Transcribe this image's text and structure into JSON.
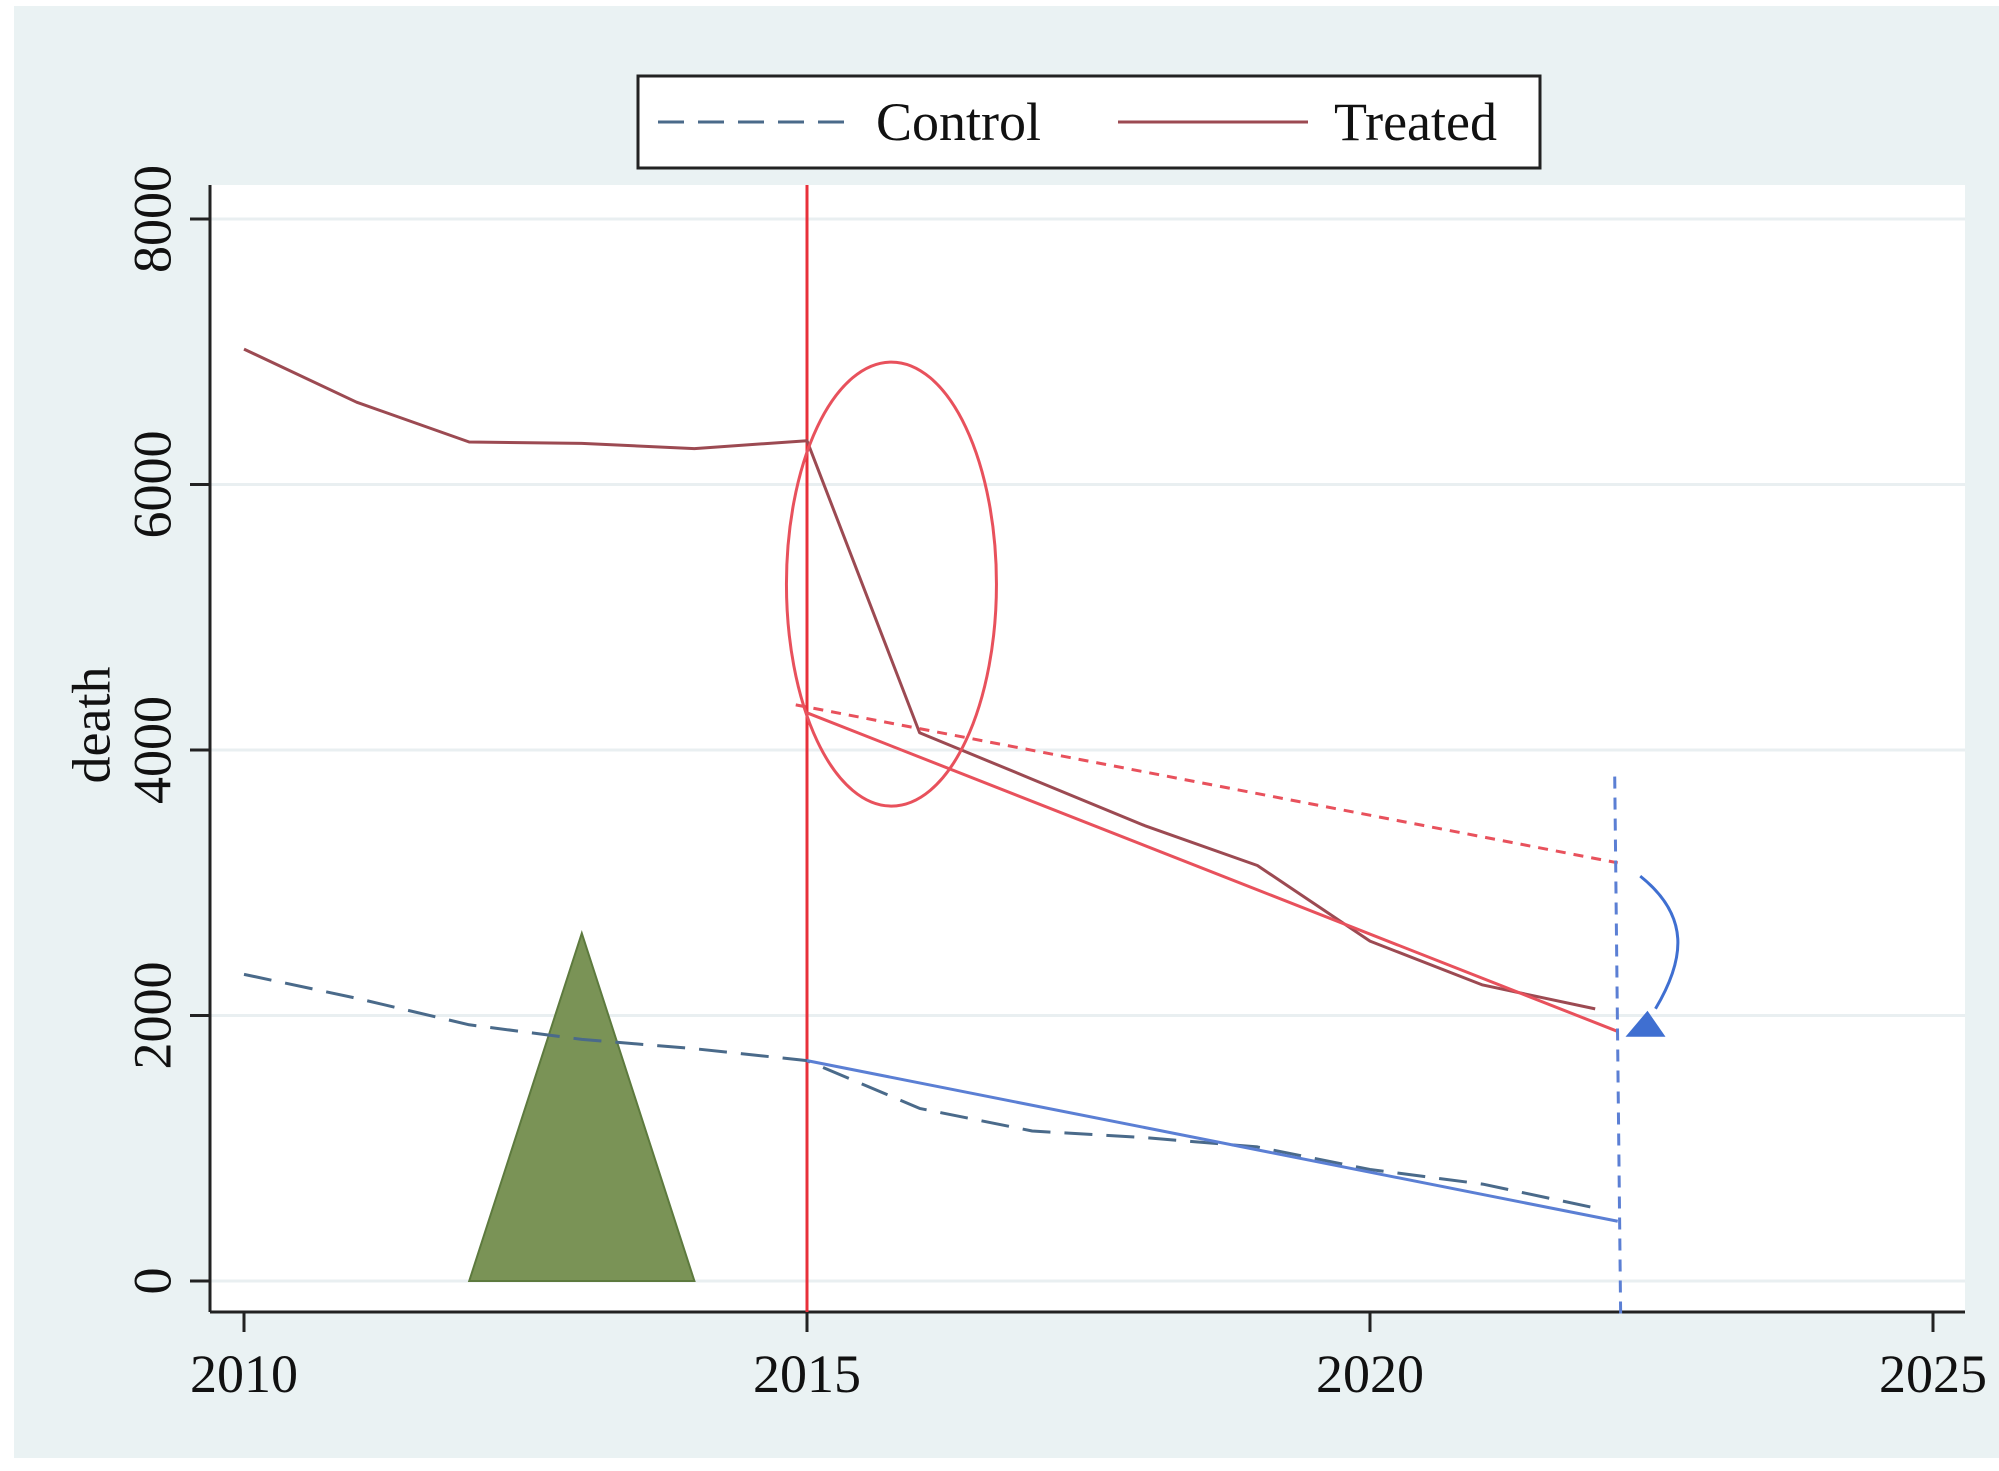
{
  "chart_data": {
    "type": "line",
    "title": "",
    "xlabel": "",
    "ylabel": "death",
    "xlim": [
      2010,
      2025
    ],
    "ylim": [
      0,
      8000
    ],
    "x_ticks": [
      2010,
      2015,
      2020,
      2025
    ],
    "y_ticks": [
      0,
      2000,
      4000,
      6000,
      8000
    ],
    "grid": "horizontal",
    "legend_position": "top",
    "series": [
      {
        "name": "Control",
        "style": "dashed",
        "color": "#4a6a8a",
        "x": [
          2010,
          2011,
          2012,
          2013,
          2014,
          2015,
          2016,
          2017,
          2018,
          2019,
          2020,
          2021,
          2022
        ],
        "y": [
          2310,
          2130,
          1930,
          1820,
          1750,
          1660,
          1300,
          1130,
          1080,
          1010,
          840,
          730,
          550
        ]
      },
      {
        "name": "Treated",
        "style": "solid",
        "color": "#9c4a52",
        "x": [
          2010,
          2011,
          2012,
          2013,
          2014,
          2015,
          2016,
          2017,
          2018,
          2019,
          2020,
          2021,
          2022
        ],
        "y": [
          7020,
          6620,
          6320,
          6310,
          6270,
          6330,
          4130,
          3780,
          3430,
          3130,
          2560,
          2230,
          2050
        ]
      }
    ],
    "annotations": {
      "treatment_line_x": 2015,
      "treated_trend_fit": {
        "x": [
          2015,
          2022.2
        ],
        "y": [
          4280,
          1880
        ],
        "color": "#e8515c"
      },
      "treated_counterfactual": {
        "x": [
          2014.9,
          2022.2
        ],
        "y": [
          4340,
          3150
        ],
        "color": "#e8515c"
      },
      "control_trend_fit": {
        "x": [
          2015,
          2022.2
        ],
        "y": [
          1660,
          450
        ],
        "color": "#5b7fd4"
      },
      "end_marker_x": 2022.2,
      "ellipse_center": {
        "x": 2015.75,
        "y": 5250
      },
      "triangle": {
        "x": [
          2012,
          2013,
          2014
        ],
        "y": [
          0,
          2620,
          0
        ],
        "color": "#7a9356"
      },
      "arrow": {
        "from": {
          "x": 2022.4,
          "y": 3050
        },
        "to": {
          "x": 2022.5,
          "y": 1900
        },
        "color": "#3f6fd1"
      }
    }
  },
  "legend": {
    "control_label": "Control",
    "treated_label": "Treated"
  },
  "axes": {
    "ylabel": "death",
    "x_tick_labels": [
      "2010",
      "2015",
      "2020",
      "2025"
    ],
    "y_tick_labels": [
      "0",
      "2000",
      "4000",
      "6000",
      "8000"
    ]
  },
  "colors": {
    "outer_background": "#eaf2f3",
    "plot_background": "#ffffff",
    "gridline": "#e9eff1",
    "treatment_line": "#e8303a"
  }
}
